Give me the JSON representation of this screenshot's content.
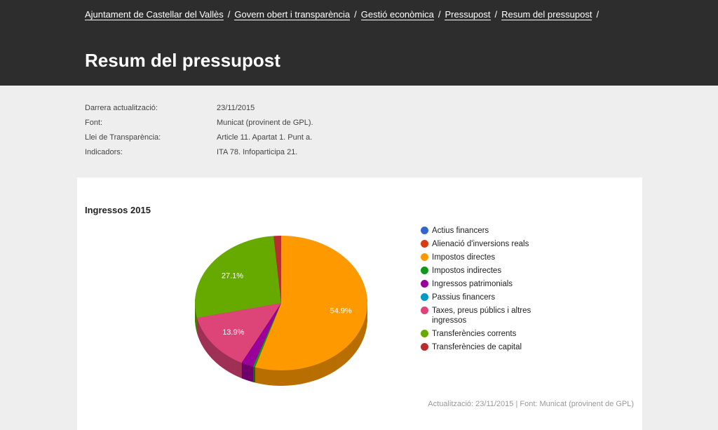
{
  "breadcrumb": [
    "Ajuntament de Castellar del Vallès",
    "Govern obert i transparència",
    "Gestió econòmica",
    "Pressupost",
    "Resum del pressupost"
  ],
  "page_title": "Resum del pressupost",
  "meta": [
    {
      "label": "Darrera actualització:",
      "value": "23/11/2015"
    },
    {
      "label": "Font:",
      "value": "Municat (provinent de GPL)."
    },
    {
      "label": "Llei de Transparència:",
      "value": "Article 11. Apartat 1. Punt a."
    },
    {
      "label": "Indicadors:",
      "value": "ITA 78. Infoparticipa 21."
    }
  ],
  "footer": "Actualització: 23/11/2015 | Font: Municat (provinent de GPL)",
  "chart_data": {
    "type": "pie",
    "style": "3d",
    "title": "Ingressos 2015",
    "legend": "right",
    "categories": [
      "Actius financers",
      "Alienació d'inversions reals",
      "Impostos directes",
      "Impostos indirectes",
      "Ingressos patrimonials",
      "Passius financers",
      "Taxes, preus públics i altres ingressos",
      "Transferències corrents",
      "Transferències de capital"
    ],
    "values": [
      0,
      0,
      54.9,
      0.4,
      2.3,
      0,
      13.9,
      27.1,
      1.4
    ],
    "labels": [
      "",
      "",
      "54.9%",
      "",
      "",
      "",
      "13.9%",
      "27.1%",
      ""
    ],
    "colors": [
      "#3366cc",
      "#dc3912",
      "#ff9900",
      "#109618",
      "#990099",
      "#0099c6",
      "#dd4477",
      "#66aa00",
      "#b82e2e"
    ]
  }
}
